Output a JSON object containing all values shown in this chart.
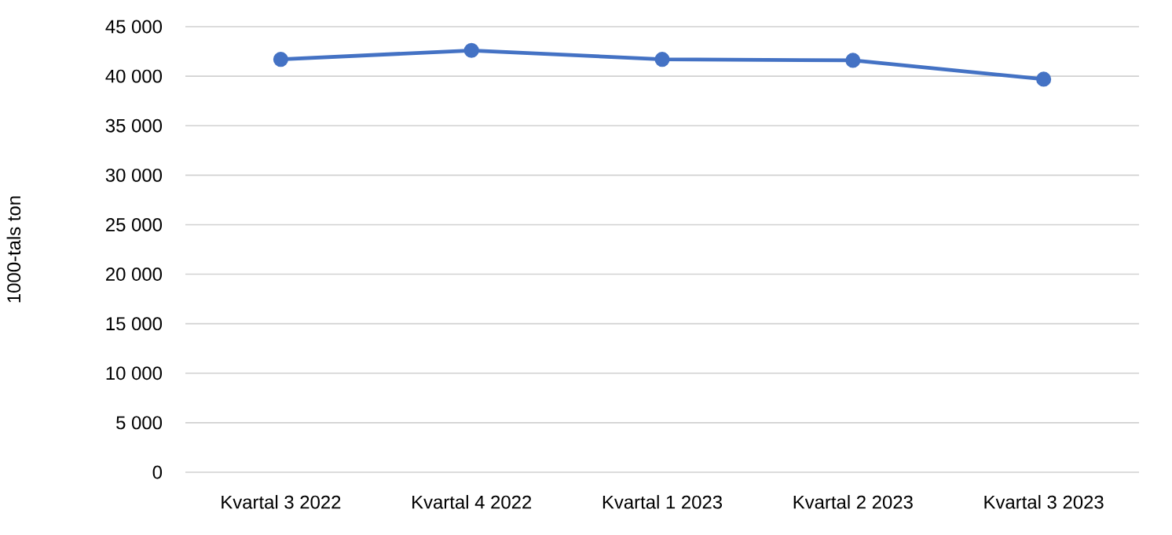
{
  "chart_data": {
    "type": "line",
    "ylabel": "1000-tals ton",
    "categories": [
      "Kvartal 3 2022",
      "Kvartal 4 2022",
      "Kvartal 1 2023",
      "Kvartal 2 2023",
      "Kvartal 3 2023"
    ],
    "series": [
      {
        "color": "#4472c4",
        "values": [
          41700,
          42600,
          41700,
          41600,
          39700
        ]
      }
    ],
    "ylim": [
      0,
      45000
    ],
    "yticks": [
      {
        "value": 0,
        "label": "0"
      },
      {
        "value": 5000,
        "label": "5 000"
      },
      {
        "value": 10000,
        "label": "10 000"
      },
      {
        "value": 15000,
        "label": "15 000"
      },
      {
        "value": 20000,
        "label": "20 000"
      },
      {
        "value": 25000,
        "label": "25 000"
      },
      {
        "value": 30000,
        "label": "30 000"
      },
      {
        "value": 35000,
        "label": "35 000"
      },
      {
        "value": 40000,
        "label": "40 000"
      },
      {
        "value": 45000,
        "label": "45 000"
      }
    ],
    "grid": "y",
    "marker": "circle",
    "line_style": "solid"
  }
}
